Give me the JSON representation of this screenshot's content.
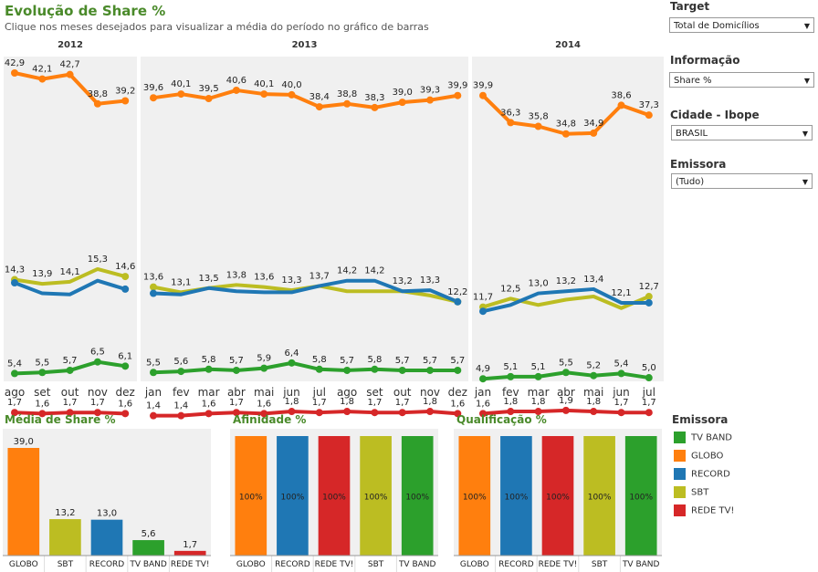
{
  "header": {
    "title": "Evolução de Share %",
    "subtitle": "Clique nos meses desejados para visualizar a média do período no gráfico de barras"
  },
  "controls": {
    "target": {
      "label": "Target",
      "value": "Total de Domicílios"
    },
    "informacao": {
      "label": "Informação",
      "value": "Share %"
    },
    "cidade": {
      "label": "Cidade - Ibope",
      "value": "BRASIL"
    },
    "emissora": {
      "label": "Emissora",
      "value": "(Tudo)"
    }
  },
  "legend": {
    "title": "Emissora",
    "items": [
      {
        "name": "TV BAND",
        "color": "#2ca02c"
      },
      {
        "name": "GLOBO",
        "color": "#ff7f0e"
      },
      {
        "name": "RECORD",
        "color": "#1f77b4"
      },
      {
        "name": "SBT",
        "color": "#bcbd22"
      },
      {
        "name": "REDE TV!",
        "color": "#d62728"
      }
    ]
  },
  "chart_data": [
    {
      "type": "line",
      "title": "Evolução de Share %",
      "panels": [
        {
          "year": "2012",
          "months": [
            "ago",
            "set",
            "out",
            "nov",
            "dez"
          ]
        },
        {
          "year": "2013",
          "months": [
            "jan",
            "fev",
            "mar",
            "abr",
            "mai",
            "jun",
            "jul",
            "ago",
            "set",
            "out",
            "nov",
            "dez"
          ]
        },
        {
          "year": "2014",
          "months": [
            "jan",
            "fev",
            "mar",
            "abr",
            "mai",
            "jun",
            "jul"
          ]
        }
      ],
      "series": [
        {
          "name": "GLOBO",
          "color": "#ff7f0e",
          "values": [
            [
              42.9,
              42.1,
              42.7,
              38.8,
              39.2
            ],
            [
              39.6,
              40.1,
              39.5,
              40.6,
              40.1,
              40.0,
              38.4,
              38.8,
              38.3,
              39.0,
              39.3,
              39.9
            ],
            [
              39.9,
              36.3,
              35.8,
              34.8,
              34.9,
              38.6,
              37.3
            ]
          ],
          "labels": [
            [
              "42,9",
              "42,1",
              "42,7",
              "38,8",
              "39,2"
            ],
            [
              "39,6",
              "40,1",
              "39,5",
              "40,6",
              "40,1",
              "40,0",
              "38,4",
              "38,8",
              "38,3",
              "39,0",
              "39,3",
              "39,9"
            ],
            [
              "39,9",
              "36,3",
              "35,8",
              "34,8",
              "34,9",
              "38,6",
              "37,3"
            ]
          ]
        },
        {
          "name": "SBT",
          "color": "#bcbd22",
          "values": [
            [
              14.3,
              13.9,
              14.1,
              15.3,
              14.6
            ],
            [
              13.6,
              13.1,
              13.5,
              13.8,
              13.6,
              13.3,
              13.7,
              13.2,
              13.2,
              13.2,
              12.8,
              12.2
            ],
            [
              11.7,
              12.5,
              11.9,
              12.4,
              12.7,
              11.6,
              12.7
            ]
          ],
          "labels": [
            [
              "14,3",
              "13,9",
              "14,1",
              "15,3",
              "14,6"
            ],
            [
              "13,6",
              "13,1",
              "",
              "13,8",
              "13,6",
              "13,3",
              "13,7",
              "",
              "",
              "",
              "",
              ""
            ],
            [
              "11,7",
              "12,5",
              "",
              "",
              "",
              "",
              "12,7"
            ]
          ]
        },
        {
          "name": "RECORD",
          "color": "#1f77b4",
          "values": [
            [
              14.0,
              13.0,
              12.9,
              14.2,
              13.4
            ],
            [
              13.0,
              12.9,
              13.5,
              13.2,
              13.1,
              13.1,
              13.7,
              14.2,
              14.2,
              13.2,
              13.3,
              12.2
            ],
            [
              11.3,
              11.9,
              13.0,
              13.2,
              13.4,
              12.1,
              12.1
            ]
          ],
          "labels": [
            [
              "",
              "",
              "",
              "",
              ""
            ],
            [
              "",
              "",
              "13,5",
              "",
              "",
              "",
              "",
              "14,2",
              "14,2",
              "13,2",
              "13,3",
              "12,2"
            ],
            [
              "",
              "",
              "13,0",
              "13,2",
              "13,4",
              "12,1",
              ""
            ]
          ]
        },
        {
          "name": "TV BAND",
          "color": "#2ca02c",
          "values": [
            [
              5.4,
              5.5,
              5.7,
              6.5,
              6.1
            ],
            [
              5.5,
              5.6,
              5.8,
              5.7,
              5.9,
              6.4,
              5.8,
              5.7,
              5.8,
              5.7,
              5.7,
              5.7
            ],
            [
              4.9,
              5.1,
              5.1,
              5.5,
              5.2,
              5.4,
              5.0
            ]
          ],
          "labels": [
            [
              "5,4",
              "5,5",
              "5,7",
              "6,5",
              "6,1"
            ],
            [
              "5,5",
              "5,6",
              "5,8",
              "5,7",
              "5,9",
              "6,4",
              "5,8",
              "5,7",
              "5,8",
              "5,7",
              "5,7",
              "5,7"
            ],
            [
              "4,9",
              "5,1",
              "5,1",
              "5,5",
              "5,2",
              "5,4",
              "5,0"
            ]
          ]
        },
        {
          "name": "REDE TV!",
          "color": "#d62728",
          "values": [
            [
              1.7,
              1.6,
              1.7,
              1.7,
              1.6
            ],
            [
              1.4,
              1.4,
              1.6,
              1.7,
              1.6,
              1.8,
              1.7,
              1.8,
              1.7,
              1.7,
              1.8,
              1.6
            ],
            [
              1.6,
              1.8,
              1.8,
              1.9,
              1.8,
              1.7,
              1.7
            ]
          ],
          "labels": [
            [
              "1,7",
              "1,6",
              "1,7",
              "1,7",
              "1,6"
            ],
            [
              "1,4",
              "1,4",
              "1,6",
              "1,7",
              "1,6",
              "1,8",
              "1,7",
              "1,8",
              "1,7",
              "1,7",
              "1,8",
              "1,6"
            ],
            [
              "1,6",
              "1,8",
              "1,8",
              "1,9",
              "1,8",
              "1,7",
              "1,7"
            ]
          ]
        }
      ]
    },
    {
      "type": "bar",
      "title": "Média de Share %",
      "categories": [
        "GLOBO",
        "SBT",
        "RECORD",
        "TV BAND",
        "REDE TV!"
      ],
      "values": [
        39.0,
        13.2,
        13.0,
        5.6,
        1.7
      ],
      "labels": [
        "39,0",
        "13,2",
        "13,0",
        "5,6",
        "1,7"
      ],
      "colors": [
        "#ff7f0e",
        "#bcbd22",
        "#1f77b4",
        "#2ca02c",
        "#d62728"
      ]
    },
    {
      "type": "bar",
      "title": "Afinidade %",
      "categories": [
        "GLOBO",
        "RECORD",
        "REDE TV!",
        "SBT",
        "TV BAND"
      ],
      "values": [
        100,
        100,
        100,
        100,
        100
      ],
      "labels": [
        "100%",
        "100%",
        "100%",
        "100%",
        "100%"
      ],
      "colors": [
        "#ff7f0e",
        "#1f77b4",
        "#d62728",
        "#bcbd22",
        "#2ca02c"
      ]
    },
    {
      "type": "bar",
      "title": "Qualificação %",
      "categories": [
        "GLOBO",
        "RECORD",
        "REDE TV!",
        "SBT",
        "TV BAND"
      ],
      "values": [
        100,
        100,
        100,
        100,
        100
      ],
      "labels": [
        "100%",
        "100%",
        "100%",
        "100%",
        "100%"
      ],
      "colors": [
        "#ff7f0e",
        "#1f77b4",
        "#d62728",
        "#bcbd22",
        "#2ca02c"
      ]
    }
  ]
}
